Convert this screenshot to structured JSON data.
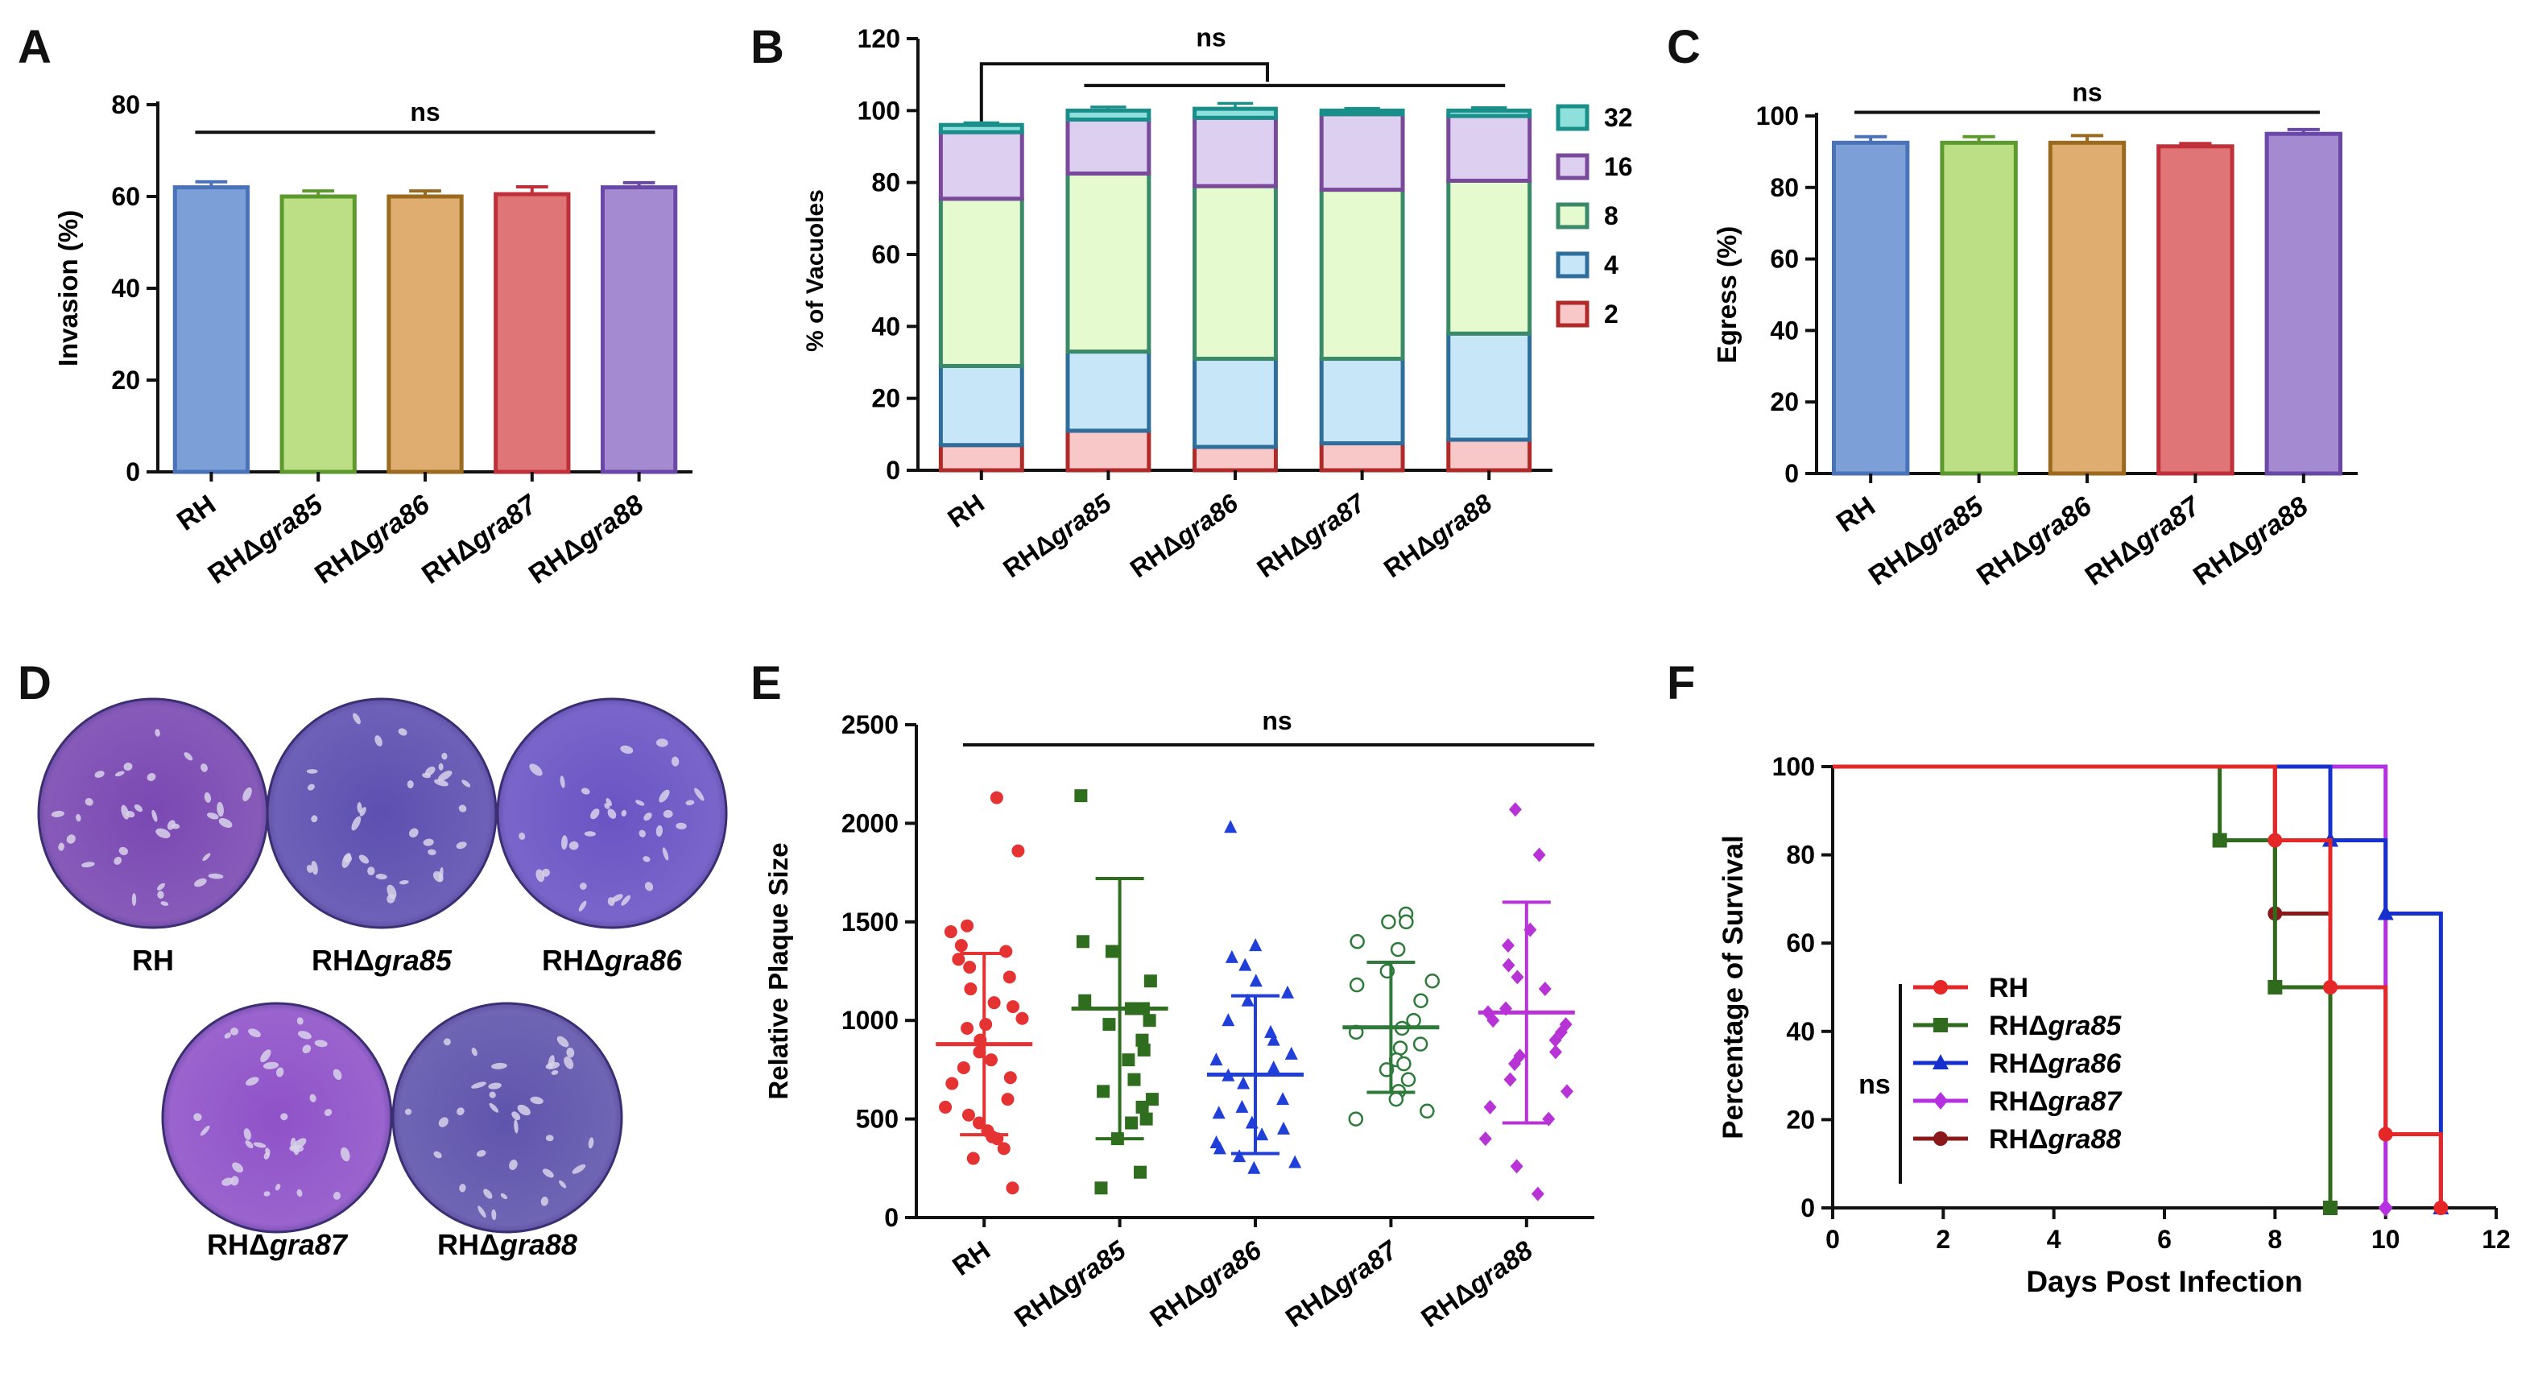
{
  "panels": {
    "A": "A",
    "B": "B",
    "C": "C",
    "D": "D",
    "E": "E",
    "F": "F"
  },
  "colors": {
    "RH": "#4a72b8",
    "gra85": "#5c9a2e",
    "gra86": "#9a6a1e",
    "gra87": "#c0303a",
    "gra88": "#6a48a8",
    "RH_fill": "#7b9fd6",
    "gra85_fill": "#bcdf86",
    "gra86_fill": "#e0ad70",
    "gra87_fill": "#e07578",
    "gra88_fill": "#a48ad0",
    "E_RH": "#e53232",
    "E_gra85": "#2e6e1e",
    "E_gra86": "#1f3fd8",
    "E_gra87": "#2e7a3a",
    "E_gra88": "#b833d6",
    "F_RH": "#e52727",
    "F_gra85": "#2f6a1d",
    "F_gra86": "#1530cc",
    "F_gra87": "#b530e0",
    "F_gra88": "#8a1a1a",
    "dish_RH": "#7a48b2",
    "dish_gra85": "#5d4fb0",
    "dish_gra86": "#6a54c4",
    "dish_gra87": "#8f52c8",
    "dish_gra88": "#5f54ac",
    "B_32": [
      "#8ee0dc",
      "#1a8f8a"
    ],
    "B_16": [
      "#dccff0",
      "#7a4a9a"
    ],
    "B_8": [
      "#e6fad0",
      "#3a8a6a"
    ],
    "B_4": [
      "#c7e6f7",
      "#2f6e9a"
    ],
    "B_2": [
      "#f8c8c8",
      "#b02a2a"
    ]
  },
  "strains": [
    "RH",
    "RHΔgra85",
    "RHΔgra86",
    "RHΔgra87",
    "RHΔgra88"
  ],
  "chart_data": [
    {
      "panel": "A",
      "type": "bar",
      "categories": [
        "RH",
        "RHΔgra85",
        "RHΔgra86",
        "RHΔgra87",
        "RHΔgra88"
      ],
      "values": [
        62,
        60,
        60,
        60.5,
        62
      ],
      "errors": [
        1.2,
        1.2,
        1.2,
        1.6,
        1.0
      ],
      "ylabel": "Invasion (%)",
      "ylim": [
        0,
        80
      ],
      "yticks": [
        0,
        20,
        40,
        60,
        80
      ],
      "annotation": "ns"
    },
    {
      "panel": "B",
      "type": "bar",
      "stacked": true,
      "categories": [
        "RH",
        "RHΔgra85",
        "RHΔgra86",
        "RHΔgra87",
        "RHΔgra88"
      ],
      "ylabel": "% of Vacuoles",
      "ylim": [
        0,
        120
      ],
      "yticks": [
        0,
        20,
        40,
        60,
        80,
        100,
        120
      ],
      "annotation": "ns",
      "series": [
        {
          "name": "2",
          "values": [
            7,
            11,
            6.5,
            7.5,
            8.5
          ],
          "errors": [
            2,
            1.5,
            2,
            2.5,
            1.5
          ]
        },
        {
          "name": "4",
          "values": [
            22,
            22,
            24.5,
            23.5,
            29.5
          ],
          "errors": [
            2,
            2,
            2,
            1.5,
            2
          ]
        },
        {
          "name": "8",
          "values": [
            46.5,
            49.5,
            48,
            47,
            42.5
          ],
          "errors": [
            5,
            1.5,
            3,
            3,
            2.5
          ]
        },
        {
          "name": "16",
          "values": [
            18.5,
            15,
            19,
            21,
            18
          ],
          "errors": [
            1,
            2,
            2,
            1,
            1.5
          ]
        },
        {
          "name": "32",
          "values": [
            2,
            2.5,
            2.5,
            1,
            1.5
          ],
          "errors": [
            0.6,
            1,
            1.5,
            0.6,
            0.8
          ]
        }
      ],
      "legend": [
        "32",
        "16",
        "8",
        "4",
        "2"
      ]
    },
    {
      "panel": "C",
      "type": "bar",
      "categories": [
        "RH",
        "RHΔgra85",
        "RHΔgra86",
        "RHΔgra87",
        "RHΔgra88"
      ],
      "values": [
        92.5,
        92.5,
        92.5,
        91.5,
        95
      ],
      "errors": [
        1.7,
        1.7,
        2,
        0.8,
        1.2
      ],
      "ylabel": "Egress (%)",
      "ylim": [
        0,
        100
      ],
      "yticks": [
        0,
        20,
        40,
        60,
        80,
        100
      ],
      "annotation": "ns"
    },
    {
      "panel": "E",
      "type": "scatter",
      "categories": [
        "RH",
        "RHΔgra85",
        "RHΔgra86",
        "RHΔgra87",
        "RHΔgra88"
      ],
      "ylabel": "Relative Plaque Size",
      "ylim": [
        0,
        2500
      ],
      "yticks": [
        0,
        500,
        1000,
        1500,
        2000,
        2500
      ],
      "annotation": "ns",
      "means": [
        880,
        1060,
        725,
        965,
        1040
      ],
      "sd": [
        460,
        660,
        400,
        330,
        560
      ],
      "markers": [
        "circle",
        "square",
        "triangle",
        "open-circle",
        "diamond"
      ],
      "points": [
        [
          2130,
          1860,
          1480,
          1450,
          1380,
          1350,
          1310,
          1270,
          1220,
          1160,
          1090,
          1070,
          1010,
          980,
          960,
          900,
          840,
          800,
          760,
          710,
          680,
          600,
          560,
          520,
          480,
          440,
          410,
          400,
          350,
          300,
          150
        ],
        [
          2140,
          1400,
          1350,
          1200,
          1100,
          1060,
          1060,
          1000,
          980,
          900,
          850,
          800,
          700,
          640,
          600,
          560,
          500,
          480,
          400,
          230,
          150
        ],
        [
          1980,
          1380,
          1320,
          1280,
          1200,
          1140,
          1100,
          1000,
          940,
          900,
          830,
          800,
          760,
          720,
          680,
          600,
          560,
          530,
          480,
          450,
          420,
          380,
          350,
          310,
          280,
          250
        ],
        [
          1540,
          1500,
          1500,
          1400,
          1360,
          1250,
          1200,
          1180,
          1100,
          1000,
          960,
          940,
          880,
          860,
          800,
          780,
          750,
          700,
          640,
          600,
          540,
          500
        ],
        [
          2070,
          1840,
          1460,
          1380,
          1280,
          1220,
          1160,
          1060,
          1040,
          1000,
          980,
          940,
          900,
          840,
          820,
          780,
          700,
          640,
          560,
          500,
          400,
          260,
          120
        ]
      ]
    },
    {
      "panel": "F",
      "type": "line",
      "xlabel": "Days Post Infection",
      "ylabel": "Percentage of Survival",
      "xlim": [
        0,
        12
      ],
      "ylim": [
        0,
        100
      ],
      "xticks": [
        0,
        2,
        4,
        6,
        8,
        10,
        12
      ],
      "yticks": [
        0,
        20,
        40,
        60,
        80,
        100
      ],
      "legend_annotation": "ns",
      "series": [
        {
          "name": "RH",
          "marker": "circle",
          "x": [
            0,
            8,
            9,
            10,
            11
          ],
          "y": [
            100,
            83.3,
            50,
            16.7,
            0
          ]
        },
        {
          "name": "RHΔgra85",
          "marker": "square",
          "x": [
            0,
            7,
            8,
            9
          ],
          "y": [
            100,
            83.3,
            50,
            0
          ]
        },
        {
          "name": "RHΔgra86",
          "marker": "triangle",
          "x": [
            0,
            9,
            10,
            11
          ],
          "y": [
            100,
            83.3,
            66.7,
            0
          ]
        },
        {
          "name": "RHΔgra87",
          "marker": "diamond",
          "x": [
            0,
            10
          ],
          "y": [
            100,
            0
          ]
        },
        {
          "name": "RHΔgra88",
          "marker": "circle",
          "x": [
            0,
            8,
            9
          ],
          "y": [
            100,
            66.7,
            0
          ]
        }
      ]
    }
  ],
  "plaque_images": {
    "labels": [
      "RH",
      "RHΔgra85",
      "RHΔgra86",
      "RHΔgra87",
      "RHΔgra88"
    ]
  }
}
